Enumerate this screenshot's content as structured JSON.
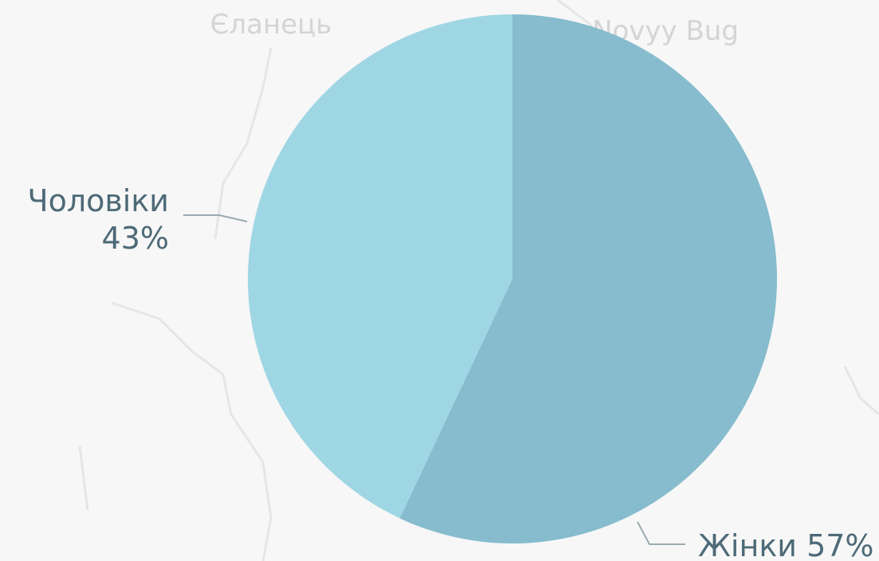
{
  "chart_data": {
    "type": "pie",
    "categories": [
      "Жінки",
      "Чоловіки"
    ],
    "values": [
      57,
      43
    ],
    "value_labels": [
      "57%",
      "43%"
    ],
    "colors": [
      "#86bccd",
      "#9fd6e4"
    ]
  },
  "map": {
    "labels": [
      "Єланець",
      "Novyy Bug"
    ]
  }
}
